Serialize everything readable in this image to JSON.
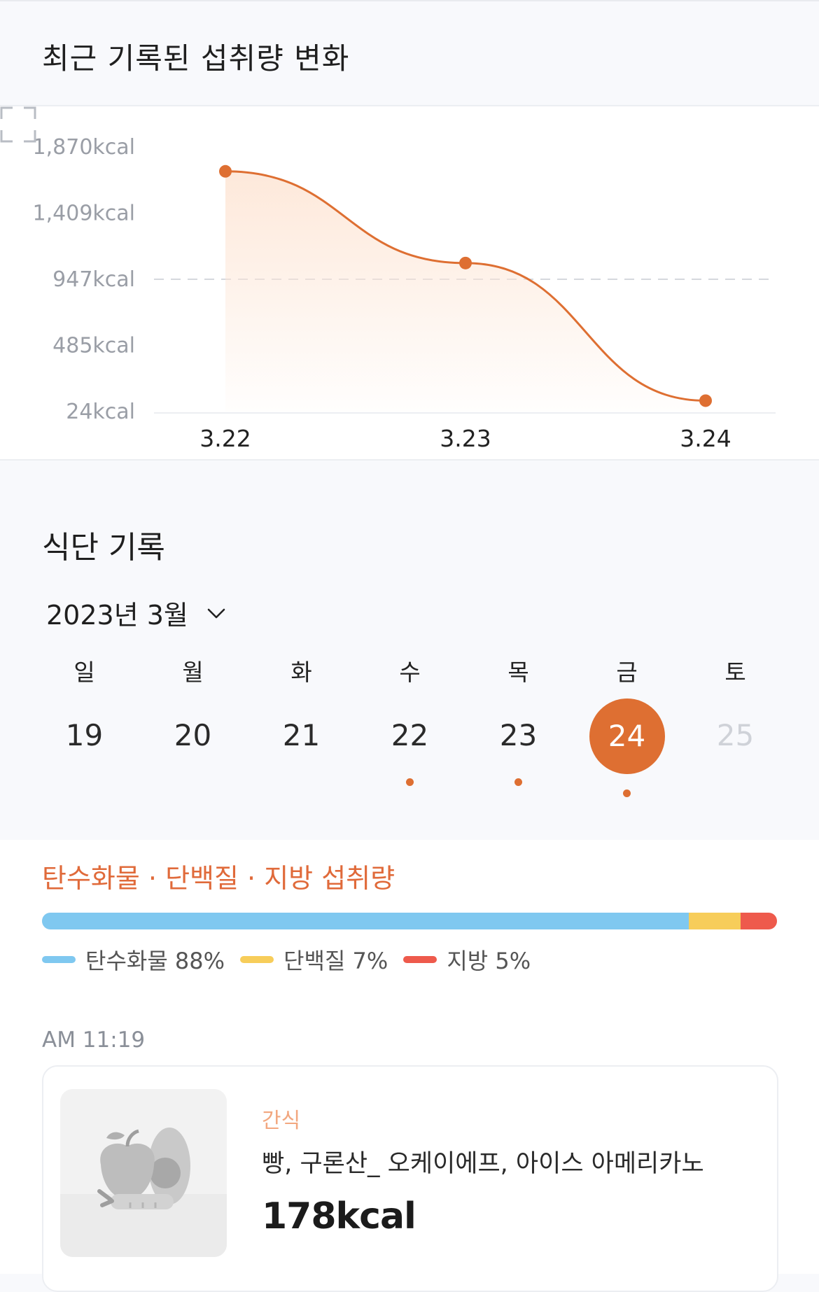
{
  "header": {
    "title": "최근 기록된 섭취량 변화"
  },
  "chart_data": {
    "type": "line",
    "x": [
      "3.22",
      "3.23",
      "3.24"
    ],
    "values": [
      1700,
      1060,
      100
    ],
    "y_ticks": [
      "1,870kcal",
      "1,409kcal",
      "947kcal",
      "485kcal",
      "24kcal"
    ],
    "y_tick_values": [
      1870,
      1409,
      947,
      485,
      24
    ],
    "ylim": [
      24,
      1870
    ],
    "reference_value": 947,
    "line_color": "#de6f32",
    "fill_color": "#fde6d6"
  },
  "diet": {
    "title": "식단 기록",
    "month_label": "2023년 3월",
    "weekdays": [
      "일",
      "월",
      "화",
      "수",
      "목",
      "금",
      "토"
    ],
    "days": [
      {
        "num": "19",
        "has_record": false,
        "selected": false,
        "disabled": false
      },
      {
        "num": "20",
        "has_record": false,
        "selected": false,
        "disabled": false
      },
      {
        "num": "21",
        "has_record": false,
        "selected": false,
        "disabled": false
      },
      {
        "num": "22",
        "has_record": true,
        "selected": false,
        "disabled": false
      },
      {
        "num": "23",
        "has_record": true,
        "selected": false,
        "disabled": false
      },
      {
        "num": "24",
        "has_record": true,
        "selected": true,
        "disabled": false
      },
      {
        "num": "25",
        "has_record": false,
        "selected": false,
        "disabled": true
      }
    ]
  },
  "macros": {
    "title": "탄수화물 · 단백질 · 지방 섭취량",
    "segments": [
      {
        "label": "탄수화물 88%",
        "percent": 88,
        "color": "#7fc8f0"
      },
      {
        "label": "단백질 7%",
        "percent": 7,
        "color": "#f7cd5a"
      },
      {
        "label": "지방 5%",
        "percent": 5,
        "color": "#ee5a4c"
      }
    ]
  },
  "meal": {
    "time": "AM 11:19",
    "type": "간식",
    "items": "빵, 구론산_ 오케이에프, 아이스 아메리카노",
    "kcal": "178kcal",
    "image_icon": "fruit-vegetable-placeholder-icon"
  }
}
